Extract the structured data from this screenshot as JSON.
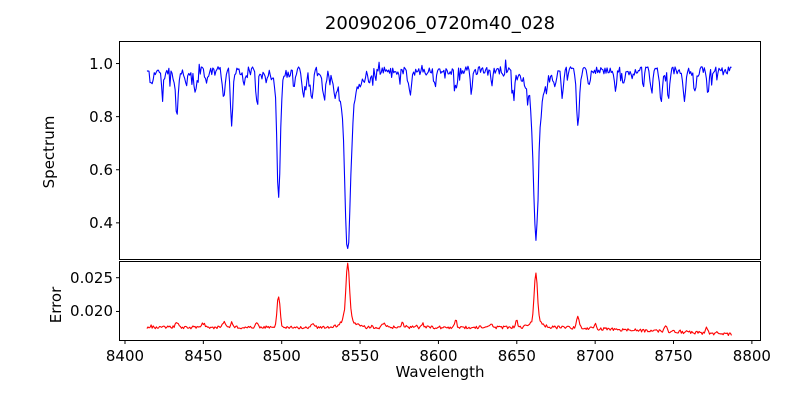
{
  "figure": {
    "background": "#ffffff",
    "frame_color": "#000000",
    "text_color": "#000000"
  },
  "chart_data": {
    "type": "line",
    "title": "20090206_0720m40_028",
    "xlabel": "Wavelength",
    "grid": false,
    "legend": null,
    "xlim": [
      8396.5,
      8805.5
    ],
    "x_ticks": [
      8400,
      8450,
      8500,
      8550,
      8600,
      8650,
      8700,
      8750,
      8800
    ],
    "x_tick_labels": [
      "8400",
      "8450",
      "8500",
      "8550",
      "8600",
      "8650",
      "8700",
      "8750",
      "8800"
    ],
    "panels": [
      {
        "name": "spectrum",
        "ylabel": "Spectrum",
        "line_color": "#0000ff",
        "ylim": [
          0.262,
          1.083
        ],
        "y_ticks": [
          0.4,
          0.6,
          0.8,
          1.0
        ],
        "y_tick_labels": [
          "0.4",
          "0.6",
          "0.8",
          "1.0"
        ],
        "x_start": 8414,
        "x_end": 8787,
        "n_points": 560,
        "noise_seed": 11,
        "continuum": 0.972,
        "noise_amp": 0.016,
        "dip_spike_prob": 0.1,
        "dip_spike_max": 0.05,
        "up_spike_prob": 0.06,
        "up_spike_max": 0.03,
        "absorption_lines": [
          [
            8417.0,
            0.05,
            1.0
          ],
          [
            8424.0,
            0.07,
            0.8
          ],
          [
            8433.0,
            0.16,
            0.9
          ],
          [
            8439.0,
            0.06,
            0.7
          ],
          [
            8445.0,
            0.09,
            0.8
          ],
          [
            8452.0,
            0.05,
            0.7
          ],
          [
            8463.0,
            0.1,
            0.8
          ],
          [
            8468.0,
            0.21,
            0.7
          ],
          [
            8476.0,
            0.06,
            0.7
          ],
          [
            8484.0,
            0.1,
            0.8
          ],
          [
            8490.0,
            0.05,
            0.6
          ],
          [
            8498.02,
            0.44,
            1.0
          ],
          [
            8498.02,
            0.05,
            3.5
          ],
          [
            8508.0,
            0.05,
            0.7
          ],
          [
            8514.0,
            0.1,
            0.8
          ],
          [
            8519.0,
            0.11,
            0.9
          ],
          [
            8527.0,
            0.1,
            0.8
          ],
          [
            8534.0,
            0.06,
            0.7
          ],
          [
            8542.09,
            0.56,
            1.7
          ],
          [
            8542.09,
            0.12,
            6.0
          ],
          [
            8556.0,
            0.05,
            0.7
          ],
          [
            8582.0,
            0.08,
            0.9
          ],
          [
            8598.0,
            0.06,
            0.7
          ],
          [
            8611.0,
            0.07,
            0.7
          ],
          [
            8621.0,
            0.07,
            0.7
          ],
          [
            8634.0,
            0.05,
            0.7
          ],
          [
            8648.0,
            0.1,
            0.8
          ],
          [
            8662.14,
            0.51,
            1.5
          ],
          [
            8662.14,
            0.12,
            5.0
          ],
          [
            8674.0,
            0.07,
            0.7
          ],
          [
            8679.0,
            0.09,
            0.7
          ],
          [
            8689.0,
            0.2,
            0.9
          ],
          [
            8696.0,
            0.06,
            0.7
          ],
          [
            8713.0,
            0.07,
            0.7
          ],
          [
            8718.0,
            0.05,
            0.6
          ],
          [
            8736.0,
            0.09,
            0.7
          ],
          [
            8742.0,
            0.11,
            0.8
          ],
          [
            8747.0,
            0.09,
            0.7
          ],
          [
            8757.0,
            0.11,
            0.8
          ],
          [
            8764.0,
            0.07,
            0.7
          ],
          [
            8772.0,
            0.1,
            0.7
          ]
        ]
      },
      {
        "name": "error",
        "ylabel": "Error",
        "line_color": "#ff0000",
        "ylim": [
          0.0157,
          0.0274
        ],
        "y_ticks": [
          0.02,
          0.025
        ],
        "y_tick_labels": [
          "0.020",
          "0.025"
        ],
        "x_start": 8414,
        "x_end": 8787,
        "n_points": 560,
        "noise_seed": 23,
        "baseline": 0.01765,
        "decline_start": 8680,
        "decline_slope": 9.5e-06,
        "noise_amp": 0.00022,
        "bump_prob": 0.06,
        "bump_max": 0.0003,
        "peaks": [
          [
            8433.0,
            0.0008,
            1.0
          ],
          [
            8450.0,
            0.0006,
            0.8
          ],
          [
            8463.0,
            0.0008,
            0.9
          ],
          [
            8468.0,
            0.0007,
            0.7
          ],
          [
            8484.0,
            0.0009,
            0.8
          ],
          [
            8498.02,
            0.0046,
            0.9
          ],
          [
            8520.0,
            0.0006,
            0.8
          ],
          [
            8542.09,
            0.0082,
            1.1
          ],
          [
            8542.09,
            0.0013,
            4.0
          ],
          [
            8565.0,
            0.0005,
            0.8
          ],
          [
            8577.0,
            0.0007,
            0.8
          ],
          [
            8590.0,
            0.0005,
            0.7
          ],
          [
            8611.0,
            0.0012,
            0.6
          ],
          [
            8634.0,
            0.0005,
            0.7
          ],
          [
            8650.0,
            0.001,
            0.6
          ],
          [
            8662.14,
            0.0072,
            1.0
          ],
          [
            8662.14,
            0.001,
            3.5
          ],
          [
            8689.0,
            0.0017,
            0.8
          ],
          [
            8700.0,
            0.0006,
            0.7
          ],
          [
            8745.0,
            0.0008,
            0.8
          ],
          [
            8771.0,
            0.001,
            0.7
          ]
        ]
      }
    ]
  }
}
